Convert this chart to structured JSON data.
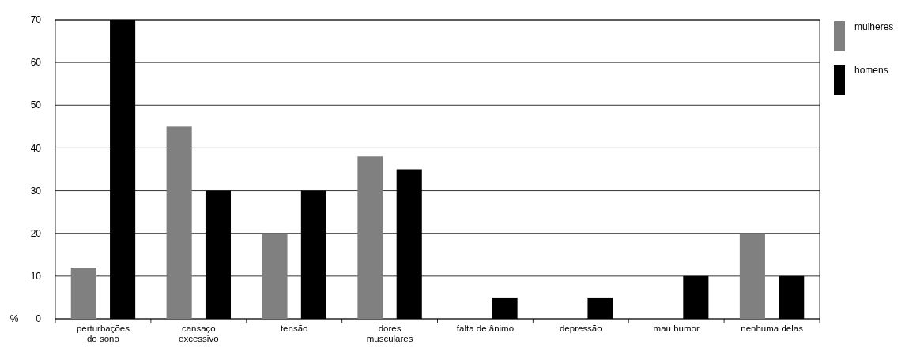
{
  "chart_data": {
    "type": "bar",
    "ylabel": "%",
    "categories": [
      "perturbações do sono",
      "cansaço excessivo",
      "tensão",
      "dores musculares",
      "falta de ânimo",
      "depressão",
      "mau humor",
      "nenhuma delas"
    ],
    "series": [
      {
        "name": "mulheres",
        "color": "#808080",
        "values": [
          12,
          45,
          20,
          38,
          0,
          0,
          0,
          20
        ]
      },
      {
        "name": "homens",
        "color": "#000000",
        "values": [
          70,
          30,
          30,
          35,
          5,
          5,
          10,
          10
        ]
      }
    ],
    "ylim": [
      0,
      70
    ],
    "yticks": [
      0,
      10,
      20,
      30,
      40,
      50,
      60,
      70
    ],
    "grid": "y",
    "legend": "top right"
  }
}
